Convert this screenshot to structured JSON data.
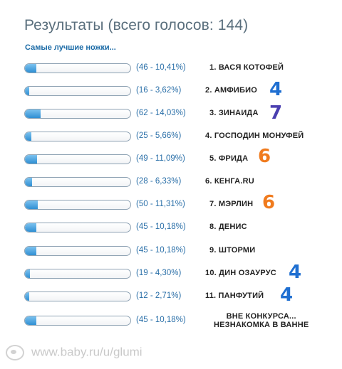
{
  "poll": {
    "title": "Результаты (всего голосов: 144)",
    "question": "Самые лучшие ножки...",
    "options": [
      {
        "label": "(46 - 10,41%)",
        "percent": 10.41,
        "name": "1. ВАСЯ КОТОФЕЙ"
      },
      {
        "label": "(16 - 3,62%)",
        "percent": 3.62,
        "name": "2. АМФИБИО",
        "mark": "4",
        "mark_color": "#1f6fd1"
      },
      {
        "label": "(62 - 14,03%)",
        "percent": 14.03,
        "name": "3. ЗИНАИДА",
        "mark": "7",
        "mark_color": "#4a3fb0"
      },
      {
        "label": "(25 - 5,66%)",
        "percent": 5.66,
        "name": "4. ГОСПОДИН МОНУФЕЙ"
      },
      {
        "label": "(49 - 11,09%)",
        "percent": 11.09,
        "name": "5. ФРИДА",
        "mark": "6",
        "mark_color": "#f07b1e"
      },
      {
        "label": "(28 - 6,33%)",
        "percent": 6.33,
        "name": "6. КЕНГА.RU"
      },
      {
        "label": "(50 - 11,31%)",
        "percent": 11.31,
        "name": "7. МЭРЛИН",
        "mark": "6",
        "mark_color": "#f07b1e"
      },
      {
        "label": "(45 - 10,18%)",
        "percent": 10.18,
        "name": "8. ДЕНИС"
      },
      {
        "label": "(45 - 10,18%)",
        "percent": 10.18,
        "name": "9. ШТОРМИ"
      },
      {
        "label": "(19 - 4,30%)",
        "percent": 4.3,
        "name": "10. ДИН ОЗАУРУС",
        "mark": "4",
        "mark_color": "#1f6fd1"
      },
      {
        "label": "(12 - 2,71%)",
        "percent": 2.71,
        "name": "11. ПАНФУТИЙ",
        "mark": "4",
        "mark_color": "#1f6fd1"
      },
      {
        "label": "(45 - 10,18%)",
        "percent": 10.18,
        "name_line1": "ВНЕ КОНКУРСА...",
        "name_line2": "НЕЗНАКОМКА В ВАННЕ"
      }
    ]
  },
  "footer": {
    "watermark": "www.baby.ru/u/glumi"
  },
  "colors": {
    "title": "#5a6f7d",
    "question": "#1a6aa6",
    "bar_fill": "#2f8fd3",
    "percent_text": "#2a6fa8"
  }
}
